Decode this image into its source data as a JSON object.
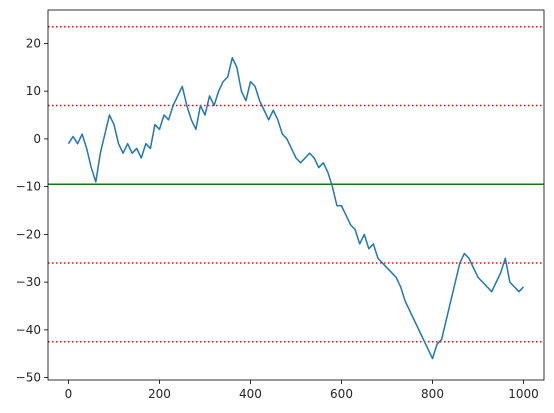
{
  "chart_data": {
    "type": "line",
    "title": "",
    "xlabel": "",
    "ylabel": "",
    "xlim": [
      -45,
      1045
    ],
    "ylim": [
      -50.5,
      27
    ],
    "x_ticks": [
      0,
      200,
      400,
      600,
      800,
      1000
    ],
    "y_ticks": [
      20,
      10,
      0,
      -10,
      -20,
      -30,
      -40,
      -50
    ],
    "x_tick_labels": [
      "0",
      "200",
      "400",
      "600",
      "800",
      "1000"
    ],
    "y_tick_labels": [
      "20",
      "10",
      "0",
      "−10",
      "−20",
      "−30",
      "−40",
      "−50"
    ],
    "grid": false,
    "series": [
      {
        "color": "#1f77b4",
        "x": [
          0,
          10,
          20,
          30,
          40,
          50,
          60,
          70,
          80,
          90,
          100,
          110,
          120,
          130,
          140,
          150,
          160,
          170,
          180,
          190,
          200,
          210,
          220,
          230,
          240,
          250,
          260,
          270,
          280,
          290,
          300,
          310,
          320,
          330,
          340,
          350,
          360,
          370,
          380,
          390,
          400,
          410,
          420,
          430,
          440,
          450,
          460,
          470,
          480,
          490,
          500,
          510,
          520,
          530,
          540,
          550,
          560,
          570,
          580,
          590,
          600,
          610,
          620,
          630,
          640,
          650,
          660,
          670,
          680,
          690,
          700,
          710,
          720,
          730,
          740,
          750,
          760,
          770,
          780,
          790,
          800,
          810,
          820,
          830,
          840,
          850,
          860,
          870,
          880,
          890,
          900,
          910,
          920,
          930,
          940,
          950,
          960,
          970,
          980,
          990,
          1000
        ],
        "y": [
          -1,
          0.5,
          -1,
          1,
          -2,
          -6,
          -9,
          -3,
          1,
          5,
          3,
          -1,
          -3,
          -1,
          -3,
          -2,
          -4,
          -1,
          -2,
          3,
          2,
          5,
          4,
          7,
          9,
          11,
          7,
          4,
          2,
          7,
          5,
          9,
          7,
          10,
          12,
          13,
          17,
          15,
          10,
          8,
          12,
          11,
          8,
          6,
          4,
          6,
          4,
          1,
          0,
          -2,
          -4,
          -5,
          -4,
          -3,
          -4,
          -6,
          -5,
          -7,
          -10,
          -14,
          -14,
          -16,
          -18,
          -19,
          -22,
          -20,
          -23,
          -22,
          -25,
          -26,
          -27,
          -28,
          -29,
          -31,
          -34,
          -36,
          -38,
          -40,
          -42,
          -44,
          -46,
          -43,
          -42,
          -38,
          -34,
          -30,
          -26,
          -24,
          -25,
          -27,
          -29,
          -30,
          -31,
          -32,
          -30,
          -28,
          -25,
          -30,
          -31,
          -32,
          -31
        ]
      }
    ],
    "hlines": [
      {
        "y": 23.5,
        "color": "#ff0000",
        "style": "dotted"
      },
      {
        "y": 7,
        "color": "#ff0000",
        "style": "dotted"
      },
      {
        "y": -9.5,
        "color": "#008000",
        "style": "solid"
      },
      {
        "y": -26,
        "color": "#ff0000",
        "style": "dotted"
      },
      {
        "y": -42.5,
        "color": "#ff0000",
        "style": "dotted"
      }
    ]
  }
}
